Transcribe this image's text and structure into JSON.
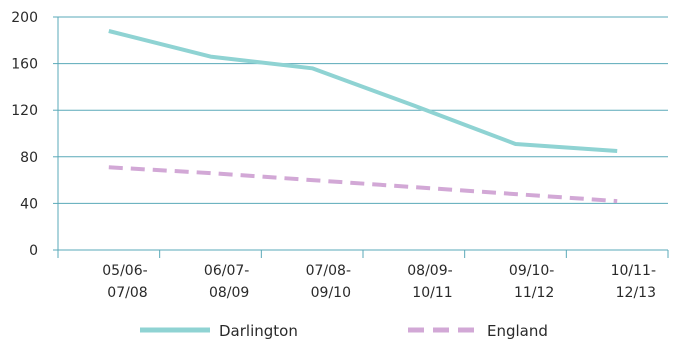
{
  "chart_data": {
    "type": "line",
    "categories": [
      "05/06-07/08",
      "06/07-08/09",
      "07/08-09/10",
      "08/09-10/11",
      "09/10-11/12",
      "10/11-12/13"
    ],
    "category_lines": [
      [
        "05/06-",
        "07/08"
      ],
      [
        "06/07-",
        "08/09"
      ],
      [
        "07/08-",
        "09/10"
      ],
      [
        "08/09-",
        "10/11"
      ],
      [
        "09/10-",
        "11/12"
      ],
      [
        "10/11-",
        "12/13"
      ]
    ],
    "series": [
      {
        "name": "Darlington",
        "values": [
          188,
          166,
          156,
          124,
          91,
          85
        ],
        "color": "#8fd3d3",
        "dash": "solid"
      },
      {
        "name": "England",
        "values": [
          71,
          66,
          60,
          54,
          48,
          42
        ],
        "color": "#d2a8d6",
        "dash": "dashed"
      }
    ],
    "y_ticks": [
      0,
      40,
      80,
      120,
      160,
      200
    ],
    "ylim": [
      0,
      200
    ],
    "grid": true,
    "grid_color": "#5aa9b8",
    "legend_position": "bottom"
  }
}
